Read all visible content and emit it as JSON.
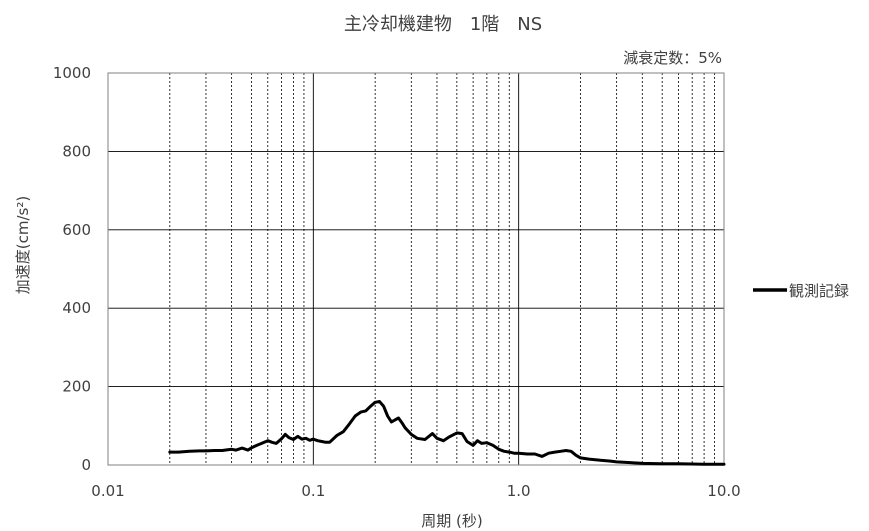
{
  "chart_data": {
    "type": "line",
    "title": "主冷却機建物　1階　NS",
    "annotation": "減衰定数：5%",
    "xlabel": "周期 (秒)",
    "ylabel": "加速度(cm/s²)",
    "x_scale": "log",
    "xlim": [
      0.01,
      10.0
    ],
    "ylim": [
      0,
      1000
    ],
    "x_ticks": [
      0.01,
      0.1,
      1.0,
      10.0
    ],
    "x_tick_labels": [
      "0.01",
      "0.1",
      "1.0",
      "10.0"
    ],
    "y_ticks": [
      0,
      200,
      400,
      600,
      800,
      1000
    ],
    "y_tick_labels": [
      "0",
      "200",
      "400",
      "600",
      "800",
      "1000"
    ],
    "grid": {
      "major": true,
      "minor_x_dashed": true
    },
    "legend_position": "right",
    "series": [
      {
        "name": "観測記録",
        "color": "#000000",
        "x": [
          0.02,
          0.022,
          0.025,
          0.028,
          0.03,
          0.033,
          0.036,
          0.04,
          0.042,
          0.045,
          0.048,
          0.05,
          0.053,
          0.056,
          0.06,
          0.063,
          0.066,
          0.07,
          0.073,
          0.076,
          0.08,
          0.084,
          0.088,
          0.092,
          0.096,
          0.1,
          0.105,
          0.11,
          0.115,
          0.12,
          0.13,
          0.14,
          0.15,
          0.16,
          0.17,
          0.18,
          0.19,
          0.2,
          0.21,
          0.22,
          0.23,
          0.24,
          0.25,
          0.26,
          0.27,
          0.28,
          0.3,
          0.32,
          0.35,
          0.38,
          0.4,
          0.43,
          0.46,
          0.5,
          0.53,
          0.56,
          0.6,
          0.63,
          0.66,
          0.7,
          0.75,
          0.8,
          0.85,
          0.9,
          0.95,
          1.0,
          1.1,
          1.2,
          1.3,
          1.4,
          1.5,
          1.6,
          1.7,
          1.8,
          1.9,
          2.0,
          2.2,
          2.5,
          2.8,
          3.0,
          3.5,
          4.0,
          5.0,
          6.0,
          8.0,
          10.0
        ],
        "y": [
          33,
          33,
          35,
          36,
          36,
          37,
          37,
          40,
          38,
          43,
          38,
          44,
          50,
          55,
          62,
          58,
          55,
          67,
          78,
          70,
          65,
          73,
          66,
          68,
          63,
          66,
          62,
          60,
          58,
          58,
          75,
          85,
          105,
          125,
          135,
          138,
          150,
          160,
          162,
          150,
          125,
          110,
          115,
          120,
          108,
          95,
          78,
          68,
          65,
          80,
          68,
          62,
          72,
          82,
          80,
          60,
          50,
          62,
          55,
          57,
          50,
          40,
          35,
          33,
          30,
          30,
          28,
          28,
          22,
          30,
          33,
          35,
          37,
          35,
          25,
          18,
          15,
          12,
          10,
          8,
          6,
          4,
          3,
          3,
          2,
          2
        ]
      }
    ]
  }
}
